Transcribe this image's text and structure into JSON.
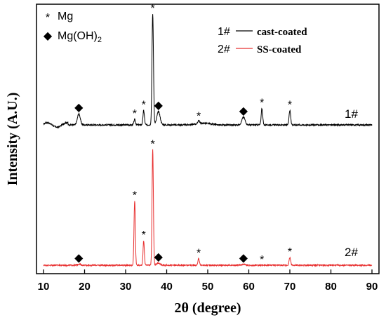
{
  "chart_data": {
    "type": "line",
    "xlabel": "2θ (degree)",
    "ylabel": "Intensity (A.U.)",
    "xlim": [
      10,
      90
    ],
    "xticks": [
      10,
      20,
      30,
      40,
      50,
      60,
      70,
      80,
      90
    ],
    "grid": false,
    "y_units": "arbitrary",
    "phase_legend": [
      {
        "symbol": "*",
        "label": "Mg"
      },
      {
        "symbol": "◆",
        "label": "Mg(OH)",
        "sub": "2"
      }
    ],
    "series": [
      {
        "name": "cast-coated",
        "id": "1#",
        "color": "#000000",
        "baseline": 1.0,
        "peaks": [
          {
            "x": 18.6,
            "height": 0.1,
            "width": 0.35,
            "marker": "◆"
          },
          {
            "x": 32.2,
            "height": 0.05,
            "width": 0.18,
            "marker": "*"
          },
          {
            "x": 34.4,
            "height": 0.13,
            "width": 0.18,
            "marker": "*"
          },
          {
            "x": 36.6,
            "height": 1.0,
            "width": 0.18,
            "marker": "*"
          },
          {
            "x": 38.0,
            "height": 0.12,
            "width": 0.4,
            "marker": "◆"
          },
          {
            "x": 47.8,
            "height": 0.03,
            "width": 0.2,
            "marker": "*"
          },
          {
            "x": 58.7,
            "height": 0.07,
            "width": 0.4,
            "marker": "◆"
          },
          {
            "x": 63.2,
            "height": 0.15,
            "width": 0.18,
            "marker": "*"
          },
          {
            "x": 70.0,
            "height": 0.13,
            "width": 0.2,
            "marker": "*"
          }
        ]
      },
      {
        "name": "SS-coated",
        "id": "2#",
        "color": "#e83030",
        "baseline": 0.0,
        "peaks": [
          {
            "x": 18.6,
            "height": 0.01,
            "width": 0.35,
            "marker": "◆"
          },
          {
            "x": 32.2,
            "height": 0.58,
            "width": 0.16,
            "marker": "*"
          },
          {
            "x": 34.4,
            "height": 0.22,
            "width": 0.16,
            "marker": "*"
          },
          {
            "x": 36.6,
            "height": 1.04,
            "width": 0.16,
            "marker": "*"
          },
          {
            "x": 38.0,
            "height": 0.02,
            "width": 0.4,
            "marker": "◆"
          },
          {
            "x": 47.8,
            "height": 0.06,
            "width": 0.18,
            "marker": "*"
          },
          {
            "x": 58.7,
            "height": 0.01,
            "width": 0.4,
            "marker": "◆"
          },
          {
            "x": 63.2,
            "height": 0.0,
            "width": 0.18,
            "marker": "*"
          },
          {
            "x": 70.0,
            "height": 0.07,
            "width": 0.18,
            "marker": "*"
          }
        ]
      }
    ]
  }
}
